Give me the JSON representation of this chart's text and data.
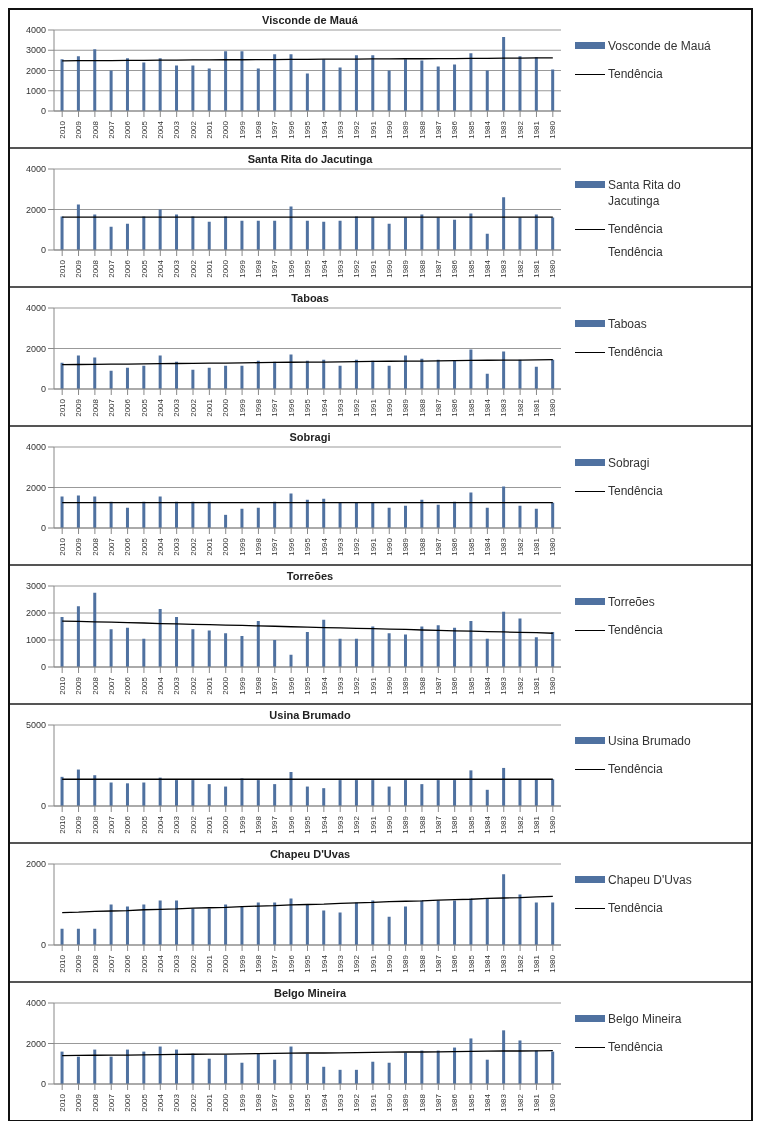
{
  "chart_data": [
    {
      "type": "bar",
      "title": "Visconde de Mauá",
      "categories": [
        "2010",
        "2009",
        "2008",
        "2007",
        "2006",
        "2005",
        "2004",
        "2003",
        "2002",
        "2001",
        "2000",
        "1999",
        "1998",
        "1997",
        "1996",
        "1995",
        "1994",
        "1993",
        "1992",
        "1991",
        "1990",
        "1989",
        "1988",
        "1987",
        "1986",
        "1985",
        "1984",
        "1983",
        "1982",
        "1981",
        "1980"
      ],
      "ylim": [
        0,
        4000
      ],
      "yticks": [
        0,
        1000,
        2000,
        3000,
        4000
      ],
      "grid": "y",
      "legend": "right",
      "series": [
        {
          "name": "Vosconde de Mauá",
          "color": "#4f71a0",
          "values": [
            2550,
            2700,
            3050,
            2000,
            2600,
            2400,
            2600,
            2250,
            2250,
            2100,
            2950,
            2950,
            2100,
            2800,
            2800,
            1850,
            2550,
            2150,
            2750,
            2750,
            2000,
            2550,
            2500,
            2200,
            2300,
            2850,
            2000,
            3650,
            2700,
            2650,
            2050
          ]
        },
        {
          "name": "Tendência",
          "type": "line",
          "color": "#000000",
          "values": [
            2480,
            2490,
            2490,
            2490,
            2500,
            2500,
            2510,
            2510,
            2520,
            2520,
            2530,
            2530,
            2540,
            2540,
            2550,
            2550,
            2560,
            2560,
            2560,
            2570,
            2570,
            2580,
            2580,
            2590,
            2590,
            2600,
            2600,
            2610,
            2610,
            2620,
            2620
          ]
        }
      ]
    },
    {
      "type": "bar",
      "title": "Santa Rita do Jacutinga",
      "categories": [
        "2010",
        "2009",
        "2008",
        "2007",
        "2006",
        "2005",
        "2004",
        "2003",
        "2002",
        "2001",
        "2000",
        "1999",
        "1998",
        "1997",
        "1996",
        "1995",
        "1994",
        "1993",
        "1992",
        "1991",
        "1990",
        "1989",
        "1988",
        "1987",
        "1986",
        "1985",
        "1984",
        "1983",
        "1982",
        "1981",
        "1980"
      ],
      "ylim": [
        0,
        4000
      ],
      "yticks": [
        0,
        2000,
        4000
      ],
      "grid": "y",
      "legend": "right",
      "annotations": [
        "Tendência"
      ],
      "series": [
        {
          "name": "Santa Rita do Jacutinga",
          "color": "#4f71a0",
          "values": [
            1650,
            2250,
            1750,
            1150,
            1300,
            1650,
            2000,
            1750,
            1650,
            1400,
            1650,
            1450,
            1450,
            1450,
            2150,
            1450,
            1400,
            1450,
            1650,
            1600,
            1300,
            1600,
            1750,
            1600,
            1500,
            1800,
            800,
            2600,
            1600,
            1750,
            1600
          ]
        },
        {
          "name": "Tendência",
          "type": "line",
          "color": "#000000",
          "values": [
            1620,
            1620,
            1620,
            1620,
            1620,
            1620,
            1620,
            1620,
            1620,
            1620,
            1620,
            1620,
            1620,
            1620,
            1620,
            1620,
            1620,
            1620,
            1620,
            1620,
            1620,
            1620,
            1620,
            1620,
            1620,
            1620,
            1620,
            1620,
            1620,
            1620,
            1620
          ]
        }
      ]
    },
    {
      "type": "bar",
      "title": "Taboas",
      "categories": [
        "2010",
        "2009",
        "2008",
        "2007",
        "2006",
        "2005",
        "2004",
        "2003",
        "2002",
        "2001",
        "2000",
        "1999",
        "1998",
        "1997",
        "1996",
        "1995",
        "1994",
        "1993",
        "1992",
        "1991",
        "1990",
        "1989",
        "1988",
        "1987",
        "1986",
        "1985",
        "1984",
        "1983",
        "1982",
        "1981",
        "1980"
      ],
      "ylim": [
        0,
        4000
      ],
      "yticks": [
        0,
        2000,
        4000
      ],
      "grid": "y",
      "legend": "right",
      "series": [
        {
          "name": "Taboas",
          "color": "#4f71a0",
          "values": [
            1300,
            1650,
            1550,
            900,
            1050,
            1150,
            1650,
            1350,
            950,
            1050,
            1150,
            1150,
            1400,
            1350,
            1700,
            1400,
            1450,
            1150,
            1450,
            1400,
            1150,
            1650,
            1500,
            1450,
            1400,
            1950,
            750,
            1850,
            1450,
            1100,
            1450
          ]
        },
        {
          "name": "Tendência",
          "type": "line",
          "color": "#000000",
          "values": [
            1200,
            1210,
            1220,
            1230,
            1230,
            1240,
            1250,
            1260,
            1270,
            1280,
            1280,
            1290,
            1300,
            1310,
            1320,
            1330,
            1330,
            1340,
            1350,
            1360,
            1370,
            1380,
            1380,
            1390,
            1400,
            1410,
            1420,
            1430,
            1430,
            1440,
            1450
          ]
        }
      ]
    },
    {
      "type": "bar",
      "title": "Sobragi",
      "categories": [
        "2010",
        "2009",
        "2008",
        "2007",
        "2006",
        "2005",
        "2004",
        "2003",
        "2002",
        "2001",
        "2000",
        "1999",
        "1998",
        "1997",
        "1996",
        "1995",
        "1994",
        "1993",
        "1992",
        "1991",
        "1990",
        "1989",
        "1988",
        "1987",
        "1986",
        "1985",
        "1984",
        "1983",
        "1982",
        "1981",
        "1980"
      ],
      "ylim": [
        0,
        4000
      ],
      "yticks": [
        0,
        2000,
        4000
      ],
      "grid": "y",
      "legend": "right",
      "series": [
        {
          "name": "Sobragi",
          "color": "#4f71a0",
          "values": [
            1550,
            1600,
            1550,
            1300,
            1000,
            1300,
            1550,
            1300,
            1300,
            1300,
            650,
            950,
            1000,
            1300,
            1700,
            1400,
            1450,
            1250,
            1250,
            1250,
            1000,
            1100,
            1400,
            1150,
            1300,
            1750,
            1000,
            2050,
            1100,
            950,
            1250
          ]
        },
        {
          "name": "Tendência",
          "type": "line",
          "color": "#000000",
          "values": [
            1250,
            1250,
            1250,
            1250,
            1250,
            1250,
            1250,
            1250,
            1250,
            1250,
            1250,
            1250,
            1250,
            1250,
            1250,
            1250,
            1250,
            1250,
            1250,
            1250,
            1250,
            1250,
            1250,
            1250,
            1250,
            1250,
            1250,
            1250,
            1250,
            1250,
            1250
          ]
        }
      ]
    },
    {
      "type": "bar",
      "title": "Torreões",
      "categories": [
        "2010",
        "2009",
        "2008",
        "2007",
        "2006",
        "2005",
        "2004",
        "2003",
        "2002",
        "2001",
        "2000",
        "1999",
        "1998",
        "1997",
        "1996",
        "1995",
        "1994",
        "1993",
        "1992",
        "1991",
        "1990",
        "1989",
        "1988",
        "1987",
        "1986",
        "1985",
        "1984",
        "1983",
        "1982",
        "1981",
        "1980"
      ],
      "ylim": [
        0,
        3000
      ],
      "yticks": [
        0,
        1000,
        2000,
        3000
      ],
      "grid": "y",
      "legend": "right",
      "series": [
        {
          "name": "Torreões",
          "color": "#4f71a0",
          "values": [
            1850,
            2250,
            2750,
            1400,
            1450,
            1050,
            2150,
            1850,
            1400,
            1350,
            1250,
            1150,
            1700,
            1000,
            450,
            1300,
            1750,
            1050,
            1050,
            1500,
            1250,
            1200,
            1500,
            1550,
            1450,
            1700,
            1050,
            2050,
            1800,
            1100,
            1300
          ]
        },
        {
          "name": "Tendência",
          "type": "line",
          "color": "#000000",
          "values": [
            1700,
            1690,
            1670,
            1660,
            1640,
            1630,
            1610,
            1600,
            1580,
            1570,
            1550,
            1540,
            1520,
            1510,
            1490,
            1480,
            1460,
            1450,
            1430,
            1420,
            1400,
            1390,
            1370,
            1360,
            1340,
            1330,
            1310,
            1300,
            1280,
            1270,
            1250
          ]
        }
      ]
    },
    {
      "type": "bar",
      "title": "Usina Brumado",
      "categories": [
        "2010",
        "2009",
        "2008",
        "2007",
        "2006",
        "2005",
        "2004",
        "2003",
        "2002",
        "2001",
        "2000",
        "1999",
        "1998",
        "1997",
        "1996",
        "1995",
        "1994",
        "1993",
        "1992",
        "1991",
        "1990",
        "1989",
        "1988",
        "1987",
        "1986",
        "1985",
        "1984",
        "1983",
        "1982",
        "1981",
        "1980"
      ],
      "ylim": [
        0,
        5000
      ],
      "yticks": [
        0,
        5000
      ],
      "grid": "y",
      "legend": "right",
      "series": [
        {
          "name": "Usina Brumado",
          "color": "#4f71a0",
          "values": [
            1800,
            2250,
            1900,
            1450,
            1400,
            1450,
            1750,
            1600,
            1600,
            1350,
            1200,
            1700,
            1600,
            1350,
            2100,
            1200,
            1100,
            1600,
            1600,
            1600,
            1200,
            1600,
            1350,
            1600,
            1600,
            2200,
            1000,
            2350,
            1650,
            1650,
            1650
          ]
        },
        {
          "name": "Tendência",
          "type": "line",
          "color": "#000000",
          "values": [
            1650,
            1650,
            1650,
            1650,
            1650,
            1650,
            1650,
            1650,
            1650,
            1650,
            1650,
            1650,
            1650,
            1650,
            1650,
            1650,
            1650,
            1650,
            1650,
            1650,
            1650,
            1650,
            1650,
            1650,
            1650,
            1650,
            1650,
            1650,
            1650,
            1650,
            1650
          ]
        }
      ]
    },
    {
      "type": "bar",
      "title": "Chapeu D'Uvas",
      "categories": [
        "2010",
        "2009",
        "2008",
        "2007",
        "2006",
        "2005",
        "2004",
        "2003",
        "2002",
        "2001",
        "2000",
        "1999",
        "1998",
        "1997",
        "1996",
        "1995",
        "1994",
        "1993",
        "1992",
        "1991",
        "1990",
        "1989",
        "1988",
        "1987",
        "1986",
        "1985",
        "1984",
        "1983",
        "1982",
        "1981",
        "1980"
      ],
      "ylim": [
        0,
        2000
      ],
      "yticks": [
        0,
        2000
      ],
      "grid": "y",
      "legend": "right",
      "series": [
        {
          "name": "Chapeu D'Uvas",
          "color": "#4f71a0",
          "values": [
            400,
            400,
            400,
            1000,
            950,
            1000,
            1100,
            1100,
            900,
            900,
            1000,
            950,
            1050,
            1050,
            1150,
            1000,
            850,
            800,
            1050,
            1100,
            700,
            950,
            1100,
            1100,
            1100,
            1150,
            1150,
            1750,
            1250,
            1050,
            1050
          ]
        },
        {
          "name": "Tendência",
          "type": "line",
          "color": "#000000",
          "values": [
            800,
            810,
            830,
            840,
            850,
            870,
            880,
            890,
            910,
            920,
            930,
            950,
            960,
            970,
            990,
            1000,
            1010,
            1030,
            1040,
            1050,
            1070,
            1080,
            1090,
            1110,
            1120,
            1130,
            1150,
            1160,
            1170,
            1190,
            1200
          ]
        }
      ]
    },
    {
      "type": "bar",
      "title": "Belgo Mineira",
      "categories": [
        "2010",
        "2009",
        "2008",
        "2007",
        "2006",
        "2005",
        "2004",
        "2003",
        "2002",
        "2001",
        "2000",
        "1999",
        "1998",
        "1997",
        "1996",
        "1995",
        "1994",
        "1993",
        "1992",
        "1991",
        "1990",
        "1989",
        "1988",
        "1987",
        "1986",
        "1985",
        "1984",
        "1983",
        "1982",
        "1981",
        "1980"
      ],
      "ylim": [
        0,
        4000
      ],
      "yticks": [
        0,
        2000,
        4000
      ],
      "grid": "y",
      "legend": "right",
      "series": [
        {
          "name": "Belgo Mineira",
          "color": "#4f71a0",
          "values": [
            1600,
            1350,
            1700,
            1350,
            1700,
            1600,
            1850,
            1700,
            1500,
            1250,
            1450,
            1050,
            1500,
            1200,
            1850,
            1500,
            850,
            700,
            700,
            1100,
            1050,
            1550,
            1650,
            1650,
            1800,
            2250,
            1200,
            2650,
            2150,
            1650,
            1600
          ]
        },
        {
          "name": "Tendência",
          "type": "line",
          "color": "#000000",
          "values": [
            1400,
            1410,
            1420,
            1430,
            1430,
            1440,
            1450,
            1460,
            1470,
            1480,
            1480,
            1490,
            1500,
            1510,
            1520,
            1530,
            1530,
            1540,
            1550,
            1560,
            1570,
            1580,
            1580,
            1590,
            1600,
            1610,
            1620,
            1630,
            1630,
            1640,
            1650
          ]
        }
      ]
    }
  ]
}
